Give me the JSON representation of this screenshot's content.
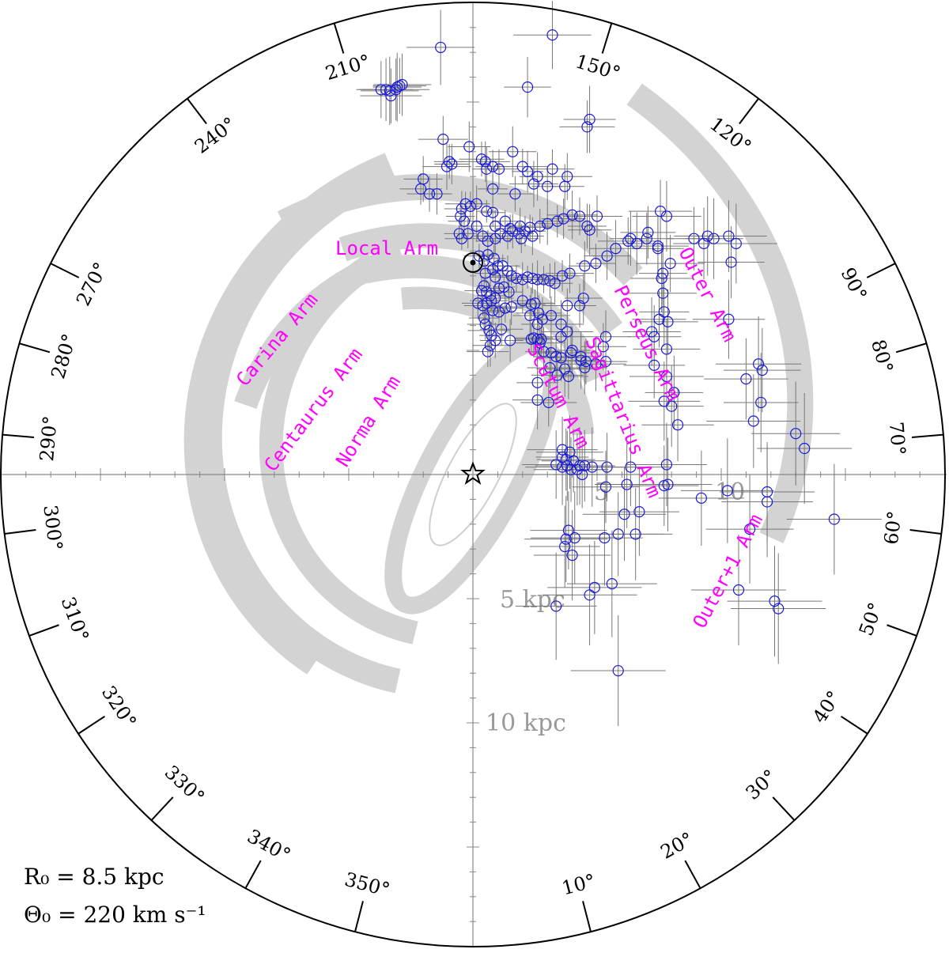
{
  "chart_data": {
    "type": "scatter",
    "title": "",
    "projection": "face-on Galactic plane, galactic longitude around rim",
    "colors": {
      "arm_band": "#d3d3d3",
      "arm_label": "#ff00ff",
      "marker": "#1a1adb",
      "error_bar": "#777777",
      "axis": "#888888",
      "scale_text": "#999999",
      "rim": "#000000"
    },
    "annotation_lines": [
      "R₀ = 8.5 kpc",
      "Θ₀ = 220 km s⁻¹"
    ],
    "scale_labels": [
      "5 kpc",
      "10 kpc",
      "5",
      "10"
    ],
    "longitude_labels": [
      "10°",
      "20°",
      "30°",
      "40°",
      "50°",
      "60°",
      "70°",
      "80°",
      "90°",
      "120°",
      "150°",
      "210°",
      "240°",
      "270°",
      "280°",
      "290°",
      "300°",
      "310°",
      "320°",
      "330°",
      "340°",
      "350°"
    ],
    "legend": "none",
    "grid": false,
    "arms": [
      {
        "name": "Local Arm"
      },
      {
        "name": "Carina Arm"
      },
      {
        "name": "Centaurus Arm"
      },
      {
        "name": "Norma Arm"
      },
      {
        "name": "Scutum Arm"
      },
      {
        "name": "Sagittarius Arm"
      },
      {
        "name": "Perseus Arm"
      },
      {
        "name": "Outer Arm"
      },
      {
        "name": "Outer+1 Arm"
      }
    ],
    "sun_kpc": [
      0,
      8.5
    ],
    "galactic_center_kpc": [
      0,
      0
    ],
    "sources_kpc": [
      [
        -3.7,
        15.5
      ],
      [
        -3.5,
        15.5
      ],
      [
        -3.35,
        15.45
      ],
      [
        -3.3,
        15.25
      ],
      [
        -3.1,
        15.5
      ],
      [
        -3.05,
        15.6
      ],
      [
        -2.95,
        15.65
      ],
      [
        -2.85,
        15.7
      ],
      [
        -1.3,
        17.2
      ],
      [
        3.2,
        17.7
      ],
      [
        2.2,
        15.6
      ],
      [
        4.7,
        14.3
      ],
      [
        4.6,
        14.0
      ],
      [
        -1.2,
        13.5
      ],
      [
        -1.05,
        12.4
      ],
      [
        -0.95,
        12.6
      ],
      [
        -0.85,
        12.5
      ],
      [
        -0.15,
        13.2
      ],
      [
        0.35,
        12.7
      ],
      [
        0.5,
        12.6
      ],
      [
        0.55,
        12.3
      ],
      [
        0.8,
        12.4
      ],
      [
        1.05,
        12.3
      ],
      [
        1.6,
        13.0
      ],
      [
        2.0,
        12.4
      ],
      [
        2.2,
        12.2
      ],
      [
        2.6,
        12.0
      ],
      [
        3.2,
        12.3
      ],
      [
        3.8,
        12.0
      ],
      [
        2.45,
        11.7
      ],
      [
        3.0,
        11.6
      ],
      [
        3.7,
        11.6
      ],
      [
        -2.0,
        11.9
      ],
      [
        -2.1,
        11.5
      ],
      [
        -1.75,
        11.3
      ],
      [
        -1.45,
        11.3
      ],
      [
        0.8,
        11.5
      ],
      [
        1.7,
        11.3
      ],
      [
        -0.45,
        10.7
      ],
      [
        -0.3,
        10.9
      ],
      [
        -0.1,
        10.8
      ],
      [
        0.15,
        10.9
      ],
      [
        -0.5,
        10.4
      ],
      [
        -0.35,
        10.2
      ],
      [
        0.15,
        10.0
      ],
      [
        0.55,
        10.6
      ],
      [
        0.8,
        10.55
      ],
      [
        0.9,
        10.0
      ],
      [
        -0.55,
        9.7
      ],
      [
        -0.45,
        9.5
      ],
      [
        -0.2,
        9.7
      ],
      [
        1.3,
        10.2
      ],
      [
        1.5,
        9.9
      ],
      [
        1.9,
        10.0
      ],
      [
        2.3,
        9.95
      ],
      [
        2.7,
        10.0
      ],
      [
        3.0,
        10.1
      ],
      [
        3.4,
        10.2
      ],
      [
        3.65,
        10.3
      ],
      [
        4.0,
        10.45
      ],
      [
        4.3,
        10.4
      ],
      [
        4.6,
        10.0
      ],
      [
        4.7,
        9.85
      ],
      [
        5.0,
        10.4
      ],
      [
        2.1,
        9.8
      ],
      [
        2.4,
        9.6
      ],
      [
        0.4,
        9.6
      ],
      [
        0.6,
        9.4
      ],
      [
        0.9,
        9.5
      ],
      [
        1.1,
        9.7
      ],
      [
        1.4,
        9.6
      ],
      [
        1.6,
        9.8
      ],
      [
        1.85,
        9.7
      ],
      [
        1.95,
        9.5
      ],
      [
        0.25,
        8.8
      ],
      [
        0.45,
        8.6
      ],
      [
        0.6,
        8.85
      ],
      [
        0.85,
        8.7
      ],
      [
        1.0,
        8.4
      ],
      [
        1.2,
        8.4
      ],
      [
        1.4,
        8.2
      ],
      [
        0.8,
        8.25
      ],
      [
        0.5,
        8.1
      ],
      [
        0.9,
        7.95
      ],
      [
        1.55,
        8.0
      ],
      [
        1.75,
        7.9
      ],
      [
        2.0,
        7.85
      ],
      [
        2.2,
        7.95
      ],
      [
        2.4,
        7.9
      ],
      [
        2.6,
        7.85
      ],
      [
        2.85,
        7.85
      ],
      [
        3.1,
        7.8
      ],
      [
        3.3,
        7.7
      ],
      [
        3.6,
        8.0
      ],
      [
        3.9,
        8.1
      ],
      [
        4.5,
        8.4
      ],
      [
        4.95,
        8.5
      ],
      [
        5.4,
        8.8
      ],
      [
        5.75,
        9.1
      ],
      [
        6.25,
        9.4
      ],
      [
        6.35,
        9.5
      ],
      [
        6.6,
        9.3
      ],
      [
        7.0,
        9.5
      ],
      [
        7.45,
        9.2
      ],
      [
        0.35,
        7.4
      ],
      [
        0.45,
        7.6
      ],
      [
        0.55,
        7.35
      ],
      [
        0.7,
        7.2
      ],
      [
        0.75,
        7.0
      ],
      [
        0.9,
        7.1
      ],
      [
        1.05,
        7.5
      ],
      [
        1.25,
        7.55
      ],
      [
        1.45,
        7.35
      ],
      [
        0.2,
        6.9
      ],
      [
        0.4,
        6.8
      ],
      [
        0.55,
        6.9
      ],
      [
        0.8,
        6.6
      ],
      [
        1.05,
        6.55
      ],
      [
        1.3,
        6.7
      ],
      [
        1.55,
        6.75
      ],
      [
        2.0,
        7.0
      ],
      [
        2.35,
        6.85
      ],
      [
        2.3,
        6.4
      ],
      [
        2.5,
        6.9
      ],
      [
        2.65,
        6.5
      ],
      [
        2.8,
        6.25
      ],
      [
        2.6,
        6.05
      ],
      [
        3.15,
        6.4
      ],
      [
        3.55,
        6.05
      ],
      [
        3.8,
        6.8
      ],
      [
        4.3,
        6.8
      ],
      [
        4.45,
        7.1
      ],
      [
        0.45,
        6.3
      ],
      [
        0.5,
        6.05
      ],
      [
        0.65,
        5.8
      ],
      [
        0.75,
        5.6
      ],
      [
        0.9,
        5.4
      ],
      [
        0.7,
        5.2
      ],
      [
        0.6,
        4.95
      ],
      [
        1.15,
        5.85
      ],
      [
        1.5,
        5.4
      ],
      [
        2.35,
        5.45
      ],
      [
        2.45,
        5.5
      ],
      [
        2.6,
        5.45
      ],
      [
        2.7,
        5.3
      ],
      [
        2.75,
        5.45
      ],
      [
        3.15,
        4.9
      ],
      [
        3.35,
        4.75
      ],
      [
        3.55,
        4.7
      ],
      [
        3.95,
        4.9
      ],
      [
        4.35,
        4.75
      ],
      [
        4.5,
        4.3
      ],
      [
        4.35,
        4.6
      ],
      [
        4.55,
        4.55
      ],
      [
        4.95,
        4.45
      ],
      [
        5.35,
        4.55
      ],
      [
        5.25,
        5.15
      ],
      [
        5.35,
        5.55
      ],
      [
        3.55,
        5.55
      ],
      [
        3.8,
        5.75
      ],
      [
        4.0,
        5.0
      ],
      [
        2.85,
        4.95
      ],
      [
        3.1,
        4.3
      ],
      [
        3.4,
        4.0
      ],
      [
        3.7,
        4.25
      ],
      [
        3.85,
        3.95
      ],
      [
        2.6,
        3.7
      ],
      [
        2.6,
        3.0
      ],
      [
        3.05,
        2.9
      ],
      [
        3.6,
        1.0
      ],
      [
        3.6,
        0.7
      ],
      [
        3.75,
        0.6
      ],
      [
        3.8,
        0.35
      ],
      [
        3.9,
        0.9
      ],
      [
        3.95,
        0.2
      ],
      [
        4.2,
        0.2
      ],
      [
        4.3,
        0.35
      ],
      [
        4.05,
        0.55
      ],
      [
        3.35,
        0.4
      ],
      [
        3.6,
        0.3
      ],
      [
        4.4,
        0.0
      ],
      [
        4.5,
        0.35
      ],
      [
        4.8,
        0.3
      ],
      [
        5.4,
        0.3
      ],
      [
        6.35,
        0.3
      ],
      [
        6.2,
        -0.4
      ],
      [
        5.35,
        -0.5
      ],
      [
        6.7,
        -1.5
      ],
      [
        6.1,
        -1.6
      ],
      [
        5.85,
        -2.4
      ],
      [
        6.55,
        -2.4
      ],
      [
        5.3,
        -2.55
      ],
      [
        3.85,
        -2.25
      ],
      [
        3.75,
        -2.6
      ],
      [
        4.1,
        -2.55
      ],
      [
        3.7,
        -2.9
      ],
      [
        4.0,
        -3.25
      ],
      [
        5.6,
        -4.4
      ],
      [
        4.9,
        -4.55
      ],
      [
        4.7,
        -4.85
      ],
      [
        3.35,
        -5.3
      ],
      [
        5.85,
        -7.9
      ],
      [
        9.2,
        -0.95
      ],
      [
        10.25,
        -0.65
      ],
      [
        11.85,
        -0.7
      ],
      [
        11.15,
        -2.2
      ],
      [
        11.85,
        -1.1
      ],
      [
        14.55,
        -1.8
      ],
      [
        10.7,
        -4.65
      ],
      [
        12.15,
        -5.1
      ],
      [
        12.3,
        -5.4
      ],
      [
        13.0,
        1.65
      ],
      [
        13.35,
        1.05
      ],
      [
        11.0,
        3.85
      ],
      [
        11.3,
        2.15
      ],
      [
        11.6,
        2.9
      ],
      [
        11.65,
        4.2
      ],
      [
        7.3,
        4.4
      ],
      [
        7.7,
        2.95
      ],
      [
        7.8,
        3.95
      ],
      [
        8.1,
        3.3
      ],
      [
        8.0,
        2.75
      ],
      [
        8.25,
        2.0
      ],
      [
        7.8,
        0.4
      ],
      [
        7.85,
        -0.4
      ],
      [
        7.7,
        -0.45
      ],
      [
        7.3,
        5.55
      ],
      [
        7.2,
        5.75
      ],
      [
        7.8,
        5.05
      ],
      [
        7.65,
        7.3
      ],
      [
        7.7,
        6.55
      ],
      [
        7.5,
        6.25
      ],
      [
        7.85,
        6.15
      ],
      [
        7.6,
        7.9
      ],
      [
        7.95,
        8.5
      ],
      [
        7.65,
        8.1
      ],
      [
        7.45,
        9.1
      ],
      [
        7.05,
        9.75
      ],
      [
        7.55,
        10.6
      ],
      [
        7.8,
        10.4
      ],
      [
        8.9,
        9.5
      ],
      [
        9.3,
        9.3
      ],
      [
        9.45,
        9.6
      ],
      [
        10.3,
        9.6
      ],
      [
        10.6,
        9.3
      ],
      [
        9.7,
        9.5
      ],
      [
        10.4,
        8.55
      ],
      [
        10.3,
        6.25
      ],
      [
        11.5,
        4.45
      ]
    ]
  }
}
